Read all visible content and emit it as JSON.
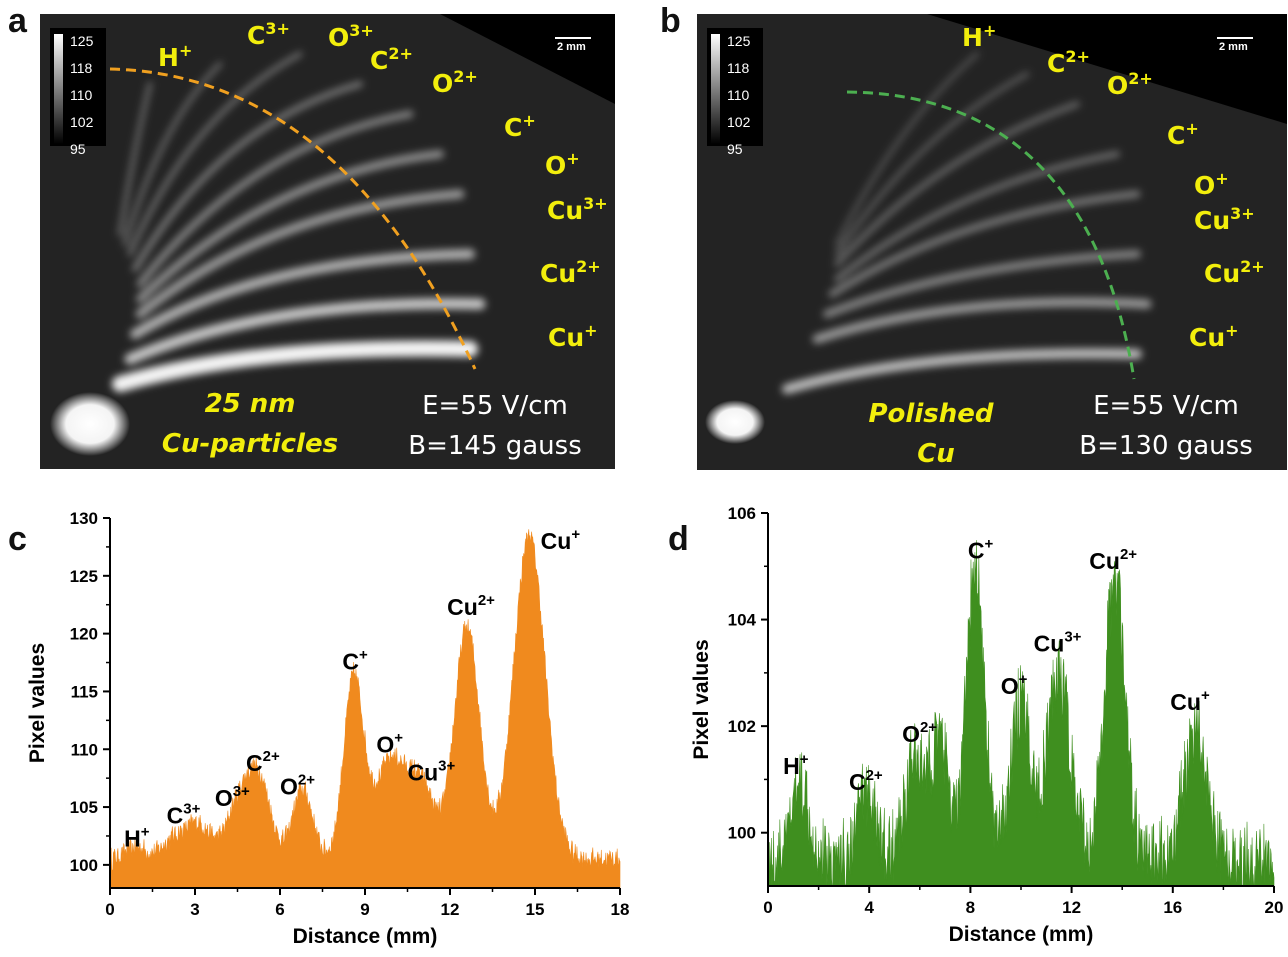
{
  "panels": {
    "a": {
      "letter": "a",
      "colorbar_ticks": [
        "125",
        "118",
        "110",
        "102",
        "95"
      ],
      "scale_bar": "2 mm",
      "ions": [
        {
          "base": "H",
          "sup": "+"
        },
        {
          "base": "C",
          "sup": "3+"
        },
        {
          "base": "O",
          "sup": "3+"
        },
        {
          "base": "C",
          "sup": "2+"
        },
        {
          "base": "O",
          "sup": "2+"
        },
        {
          "base": "C",
          "sup": "+"
        },
        {
          "base": "O",
          "sup": "+"
        },
        {
          "base": "Cu",
          "sup": "3+"
        },
        {
          "base": "Cu",
          "sup": "2+"
        },
        {
          "base": "Cu",
          "sup": "+"
        }
      ],
      "sample_line1": "25 nm",
      "sample_line2": "Cu-particles",
      "field_E": "E=55 V/cm",
      "field_B": "B=145 gauss",
      "arc_color": "#f0a020"
    },
    "b": {
      "letter": "b",
      "colorbar_ticks": [
        "125",
        "118",
        "110",
        "102",
        "95"
      ],
      "scale_bar": "2 mm",
      "ions": [
        {
          "base": "H",
          "sup": "+"
        },
        {
          "base": "C",
          "sup": "2+"
        },
        {
          "base": "O",
          "sup": "2+"
        },
        {
          "base": "C",
          "sup": "+"
        },
        {
          "base": "O",
          "sup": "+"
        },
        {
          "base": "Cu",
          "sup": "3+"
        },
        {
          "base": "Cu",
          "sup": "2+"
        },
        {
          "base": "Cu",
          "sup": "+"
        }
      ],
      "sample_line1": "Polished",
      "sample_line2": "Cu",
      "field_E": "E=55 V/cm",
      "field_B": "B=130 gauss",
      "arc_color": "#4caf50"
    }
  },
  "chart_data": [
    {
      "panel": "c",
      "type": "area",
      "color": "#f08a1e",
      "xlabel": "Distance (mm)",
      "ylabel": "Pixel values",
      "xlim": [
        0,
        18
      ],
      "ylim": [
        98,
        130
      ],
      "xticks": [
        0,
        3,
        6,
        9,
        12,
        15,
        18
      ],
      "yticks": [
        100,
        105,
        110,
        115,
        120,
        125,
        130
      ],
      "baseline": 100.5,
      "peaks": [
        {
          "x": 0.9,
          "y": 101.5,
          "width": 0.35
        },
        {
          "x": 2.2,
          "y": 102.0,
          "width": 0.4
        },
        {
          "x": 3.1,
          "y": 103.5,
          "width": 0.45
        },
        {
          "x": 4.6,
          "y": 105.5,
          "width": 0.45
        },
        {
          "x": 5.3,
          "y": 106.5,
          "width": 0.4
        },
        {
          "x": 6.8,
          "y": 106.5,
          "width": 0.35
        },
        {
          "x": 8.6,
          "y": 116.0,
          "width": 0.35
        },
        {
          "x": 9.9,
          "y": 109.0,
          "width": 0.55
        },
        {
          "x": 11.0,
          "y": 106.5,
          "width": 0.45
        },
        {
          "x": 12.6,
          "y": 120.5,
          "width": 0.45
        },
        {
          "x": 14.8,
          "y": 128.5,
          "width": 0.55
        }
      ],
      "annotations": [
        {
          "base": "H",
          "sup": "+",
          "x": 0.5,
          "y": 101.6
        },
        {
          "base": "C",
          "sup": "3+",
          "x": 2.0,
          "y": 103.6
        },
        {
          "base": "O",
          "sup": "3+",
          "x": 3.7,
          "y": 105.1
        },
        {
          "base": "C",
          "sup": "2+",
          "x": 4.8,
          "y": 108.1
        },
        {
          "base": "O",
          "sup": "2+",
          "x": 6.0,
          "y": 106.1
        },
        {
          "base": "C",
          "sup": "+",
          "x": 8.2,
          "y": 116.9
        },
        {
          "base": "O",
          "sup": "+",
          "x": 9.4,
          "y": 109.7
        },
        {
          "base": "Cu",
          "sup": "3+",
          "x": 10.5,
          "y": 107.3
        },
        {
          "base": "Cu",
          "sup": "2+",
          "x": 11.9,
          "y": 121.6
        },
        {
          "base": "Cu",
          "sup": "+",
          "x": 15.2,
          "y": 127.3
        }
      ]
    },
    {
      "panel": "d",
      "type": "area",
      "color": "#3f8f1f",
      "xlabel": "Distance (mm)",
      "ylabel": "Pixel values",
      "xlim": [
        0,
        20
      ],
      "ylim": [
        99,
        106
      ],
      "xticks": [
        0,
        4,
        8,
        12,
        16,
        20
      ],
      "yticks": [
        100,
        102,
        104,
        106
      ],
      "baseline": 99.5,
      "peaks": [
        {
          "x": 1.3,
          "y": 101.0,
          "width": 0.35
        },
        {
          "x": 3.9,
          "y": 100.8,
          "width": 0.35
        },
        {
          "x": 5.8,
          "y": 101.4,
          "width": 0.4
        },
        {
          "x": 6.8,
          "y": 101.6,
          "width": 0.35
        },
        {
          "x": 8.2,
          "y": 105.0,
          "width": 0.35
        },
        {
          "x": 10.0,
          "y": 102.4,
          "width": 0.4
        },
        {
          "x": 11.5,
          "y": 103.0,
          "width": 0.45
        },
        {
          "x": 13.7,
          "y": 104.8,
          "width": 0.4
        },
        {
          "x": 16.9,
          "y": 102.0,
          "width": 0.45
        }
      ],
      "annotations": [
        {
          "base": "H",
          "sup": "+",
          "x": 0.6,
          "y": 101.1
        },
        {
          "base": "C",
          "sup": "2+",
          "x": 3.2,
          "y": 100.8
        },
        {
          "base": "O",
          "sup": "2+",
          "x": 5.3,
          "y": 101.7
        },
        {
          "base": "C",
          "sup": "+",
          "x": 7.9,
          "y": 105.15
        },
        {
          "base": "O",
          "sup": "+",
          "x": 9.2,
          "y": 102.6
        },
        {
          "base": "Cu",
          "sup": "3+",
          "x": 10.5,
          "y": 103.4
        },
        {
          "base": "Cu",
          "sup": "2+",
          "x": 12.7,
          "y": 104.95
        },
        {
          "base": "Cu",
          "sup": "+",
          "x": 15.9,
          "y": 102.3
        }
      ]
    }
  ]
}
